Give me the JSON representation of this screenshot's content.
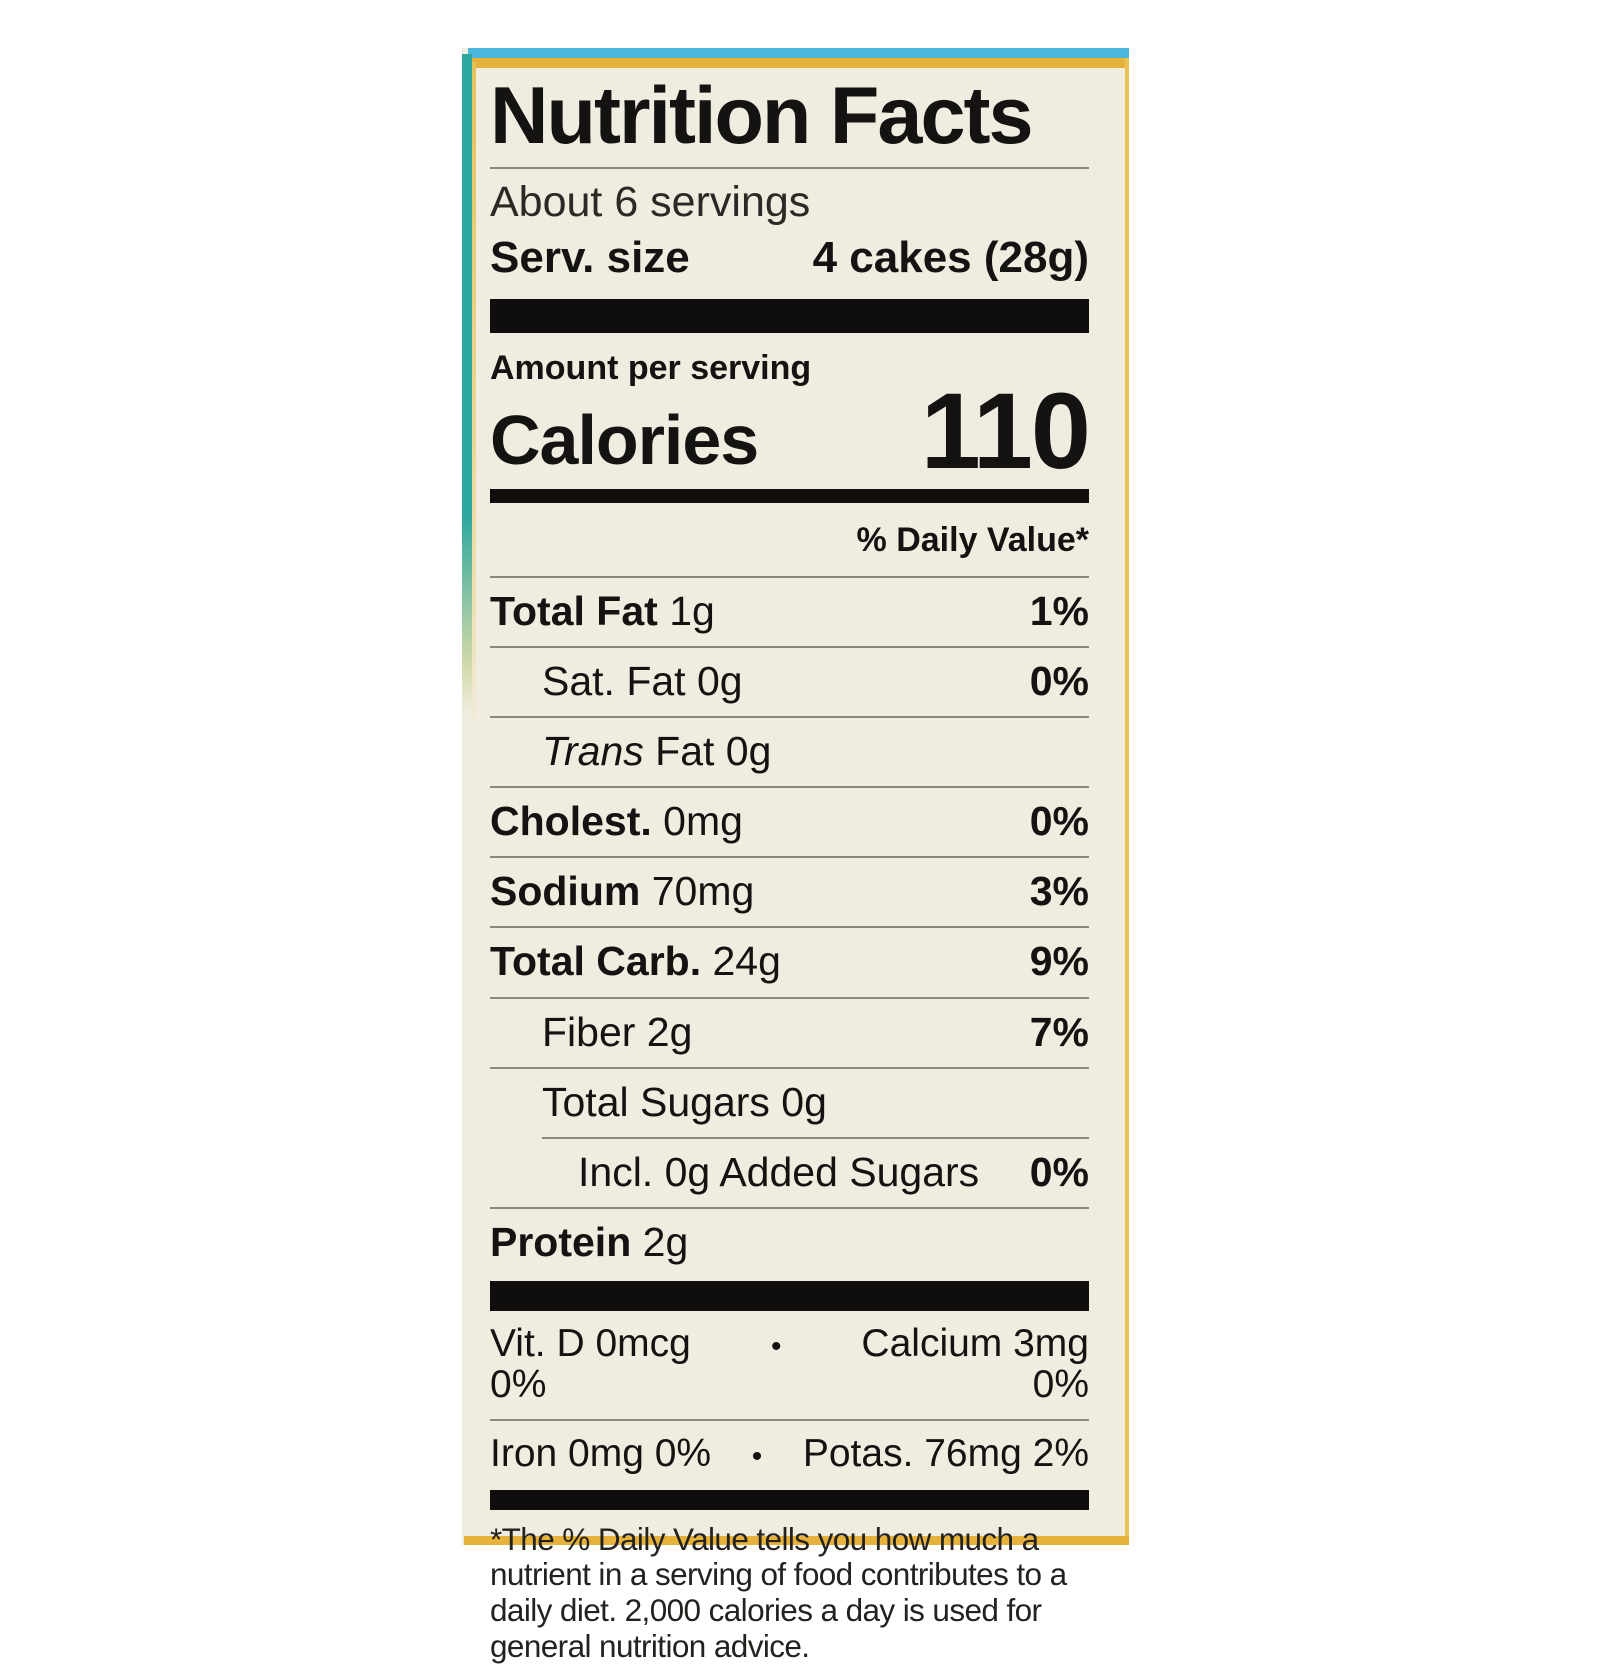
{
  "colors": {
    "cream": "#f0ede0",
    "edge_blue": "#49b7dc",
    "edge_gold": "#e6b23b",
    "edge_teal": "#2da89e",
    "text_black": "#141311",
    "rule_gray": "#8a877d"
  },
  "label": {
    "title": "Nutrition Facts",
    "servings_line": "About 6 servings",
    "serving_size": {
      "label": "Serv. size",
      "value": "4 cakes (28g)"
    },
    "amount_per_serving": "Amount per serving",
    "calories": {
      "label": "Calories",
      "value": "110"
    },
    "daily_value_header": "% Daily Value*",
    "nutrients": [
      {
        "name": "Total Fat",
        "amount": "1g",
        "dv": "1%",
        "indent": 0,
        "bold": true,
        "italic_first_word": false,
        "rule_indent": false
      },
      {
        "name": "Sat. Fat",
        "amount": "0g",
        "dv": "0%",
        "indent": 1,
        "bold": false,
        "italic_first_word": false,
        "rule_indent": false
      },
      {
        "name": "Trans Fat",
        "amount": "0g",
        "dv": "",
        "indent": 1,
        "bold": false,
        "italic_first_word": true,
        "rule_indent": false
      },
      {
        "name": "Cholest.",
        "amount": "0mg",
        "dv": "0%",
        "indent": 0,
        "bold": true,
        "italic_first_word": false,
        "rule_indent": false
      },
      {
        "name": "Sodium",
        "amount": "70mg",
        "dv": "3%",
        "indent": 0,
        "bold": true,
        "italic_first_word": false,
        "rule_indent": false
      },
      {
        "name": "Total Carb.",
        "amount": "24g",
        "dv": "9%",
        "indent": 0,
        "bold": true,
        "italic_first_word": false,
        "rule_indent": false
      },
      {
        "name": "Fiber",
        "amount": "2g",
        "dv": "7%",
        "indent": 1,
        "bold": false,
        "italic_first_word": false,
        "rule_indent": false
      },
      {
        "name": "Total Sugars",
        "amount": "0g",
        "dv": "",
        "indent": 1,
        "bold": false,
        "italic_first_word": false,
        "rule_indent": false
      },
      {
        "name": "Incl. 0g Added Sugars",
        "amount": "",
        "dv": "0%",
        "indent": 2,
        "bold": false,
        "italic_first_word": false,
        "rule_indent": true
      },
      {
        "name": "Protein",
        "amount": "2g",
        "dv": "",
        "indent": 0,
        "bold": true,
        "italic_first_word": false,
        "rule_indent": false
      }
    ],
    "micronutrients": [
      {
        "left": "Vit. D 0mcg 0%",
        "sep": "•",
        "right": "Calcium 3mg 0%"
      },
      {
        "left": "Iron 0mg 0%",
        "sep": "•",
        "right": "Potas. 76mg 2%"
      }
    ],
    "footnote": "*The % Daily Value tells you how much a nutrient in a serving of food contributes to a daily diet. 2,000 calories a day is used for general nutrition advice."
  }
}
